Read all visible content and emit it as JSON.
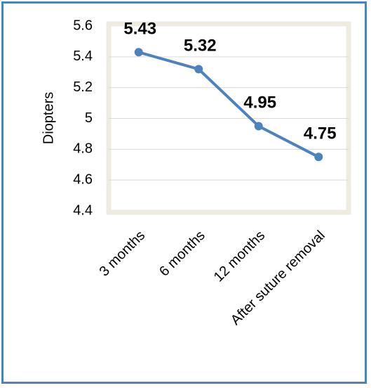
{
  "chart_data": {
    "type": "line",
    "title": "",
    "xlabel": "",
    "ylabel": "Diopters",
    "categories": [
      "3 months",
      "6 months",
      "12 months",
      "After suture removal"
    ],
    "series": [
      {
        "values": [
          5.43,
          5.32,
          4.95,
          4.75
        ],
        "data_labels": [
          "5.43",
          "5.32",
          "4.95",
          "4.75"
        ]
      }
    ],
    "ylim": [
      4.4,
      5.6
    ],
    "y_ticks": [
      "5.6",
      "5.4",
      "5.2",
      "5",
      "4.8",
      "4.6",
      "4.4"
    ],
    "grid": true,
    "legend": "none",
    "colors": {
      "line": "#4f81bd",
      "frame": "#4f81bd",
      "plot_border": "#eeece1",
      "grid": "#d9d9d9"
    }
  }
}
